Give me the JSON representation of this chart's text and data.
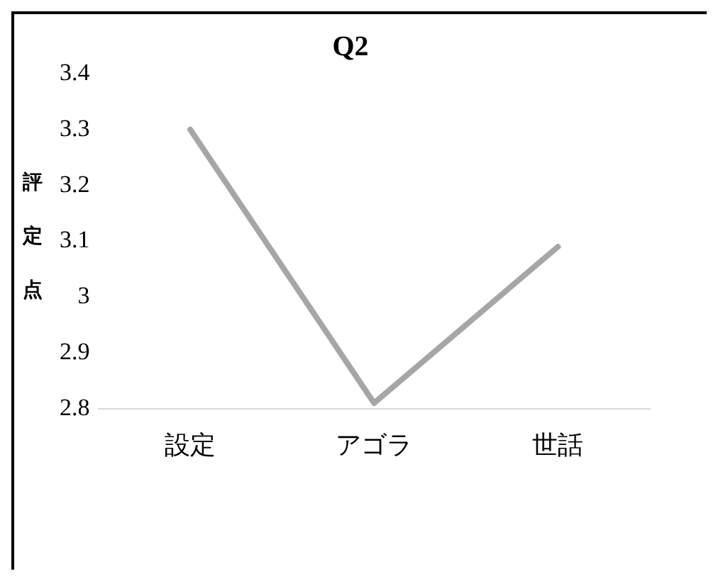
{
  "chart_data": {
    "type": "line",
    "title": "Q2",
    "ylabel": "評定点",
    "categories": [
      "設定",
      "アゴラ",
      "世話"
    ],
    "series": [
      {
        "color": "#a6a6a6",
        "values": [
          3.3,
          2.81,
          3.09
        ]
      }
    ],
    "ylim": [
      2.8,
      3.4
    ],
    "yticks": [
      2.8,
      2.9,
      3,
      3.1,
      3.2,
      3.3,
      3.4
    ],
    "grid": false,
    "legend": false,
    "marker": "none",
    "line_style": "solid"
  }
}
